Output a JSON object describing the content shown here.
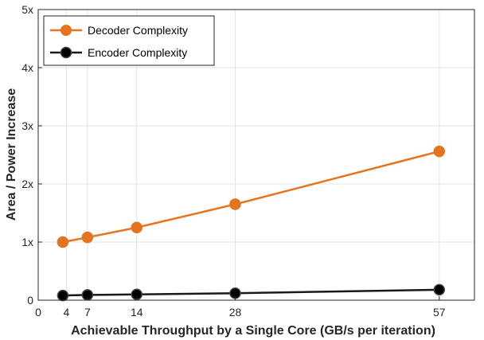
{
  "chart_data": {
    "type": "line",
    "title": "",
    "xlabel": "Achievable Throughput by a Single Core (GB/s per iteration)",
    "ylabel": "Area / Power Increase",
    "xlim": [
      0,
      62
    ],
    "ylim": [
      0,
      5
    ],
    "x_ticks": [
      0,
      4,
      7,
      14,
      28,
      57
    ],
    "x_tick_labels": [
      "0",
      "4",
      "7",
      "14",
      "28",
      "57"
    ],
    "y_ticks": [
      0,
      1,
      2,
      3,
      4,
      5
    ],
    "y_tick_labels": [
      "0",
      "1x",
      "2x",
      "3x",
      "4x",
      "5x"
    ],
    "grid": true,
    "legend_position": "top-left",
    "series": [
      {
        "name": "Decoder Complexity",
        "color": "#E6731E",
        "x": [
          3.5,
          7,
          14,
          28,
          57
        ],
        "y": [
          1.0,
          1.08,
          1.25,
          1.65,
          2.56
        ]
      },
      {
        "name": "Encoder Complexity",
        "color": "#000000",
        "x": [
          3.5,
          7,
          14,
          28,
          57
        ],
        "y": [
          0.08,
          0.09,
          0.1,
          0.12,
          0.18
        ]
      }
    ]
  }
}
